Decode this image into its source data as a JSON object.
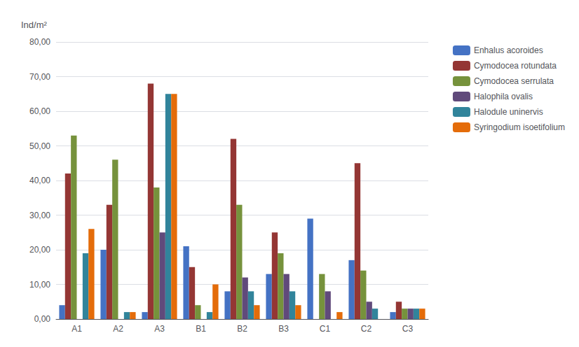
{
  "chart_data": {
    "type": "bar",
    "ylabel": "Ind/m²",
    "categories": [
      "A1",
      "A2",
      "A3",
      "B1",
      "B2",
      "B3",
      "C1",
      "C2",
      "C3"
    ],
    "series": [
      {
        "name": "Enhalus acoroides",
        "color": "#4472C4",
        "values": [
          4,
          20,
          2,
          21,
          8,
          13,
          29,
          17,
          2
        ]
      },
      {
        "name": "Cymodocea rotundata",
        "color": "#943634",
        "values": [
          42,
          33,
          68,
          15,
          52,
          25,
          0,
          45,
          5
        ]
      },
      {
        "name": "Cymodocea serrulata",
        "color": "#76923C",
        "values": [
          53,
          46,
          38,
          4,
          33,
          19,
          13,
          14,
          3
        ]
      },
      {
        "name": "Halophila ovalis",
        "color": "#604A7B",
        "values": [
          0,
          0,
          25,
          0,
          12,
          13,
          8,
          5,
          3
        ]
      },
      {
        "name": "Halodule uninervis",
        "color": "#31849B",
        "values": [
          19,
          2,
          65,
          2,
          8,
          8,
          0,
          3,
          3
        ]
      },
      {
        "name": "Syringodium isoetifolium",
        "color": "#E46C0A",
        "values": [
          26,
          2,
          65,
          10,
          4,
          4,
          2,
          0,
          3
        ]
      }
    ],
    "ylim": [
      0,
      80
    ],
    "yticks": [
      {
        "value": 0,
        "label": "0,00"
      },
      {
        "value": 10,
        "label": "10,00"
      },
      {
        "value": 20,
        "label": "20,00"
      },
      {
        "value": 30,
        "label": "30,00"
      },
      {
        "value": 40,
        "label": "40,00"
      },
      {
        "value": 50,
        "label": "50,00"
      },
      {
        "value": 60,
        "label": "60,00"
      },
      {
        "value": 70,
        "label": "70,00"
      },
      {
        "value": 80,
        "label": "80,00"
      }
    ],
    "grid": true,
    "legend": "right"
  }
}
